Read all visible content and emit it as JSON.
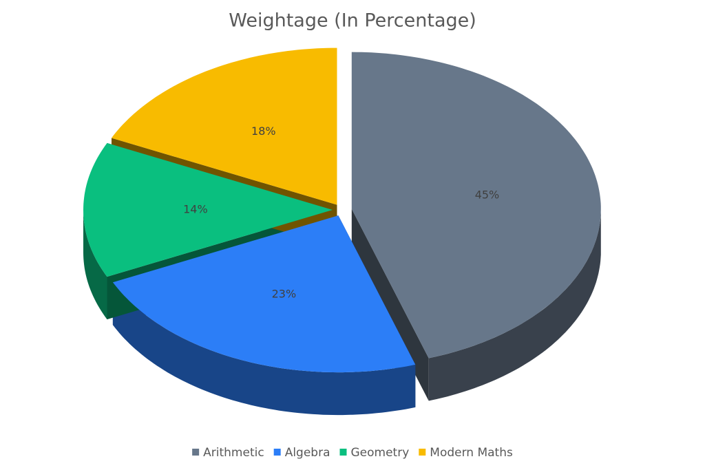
{
  "chart_data": {
    "type": "pie",
    "title": "Weightage (In Percentage)",
    "categories": [
      "Arithmetic",
      "Algebra",
      "Geometry",
      "Modern Maths"
    ],
    "values": [
      45,
      23,
      14,
      18
    ],
    "value_labels": [
      "45%",
      "23%",
      "14%",
      "18%"
    ],
    "colors": [
      "#67778a",
      "#2c7ef7",
      "#0abf7f",
      "#f8bb00"
    ],
    "legend": "bottom"
  }
}
